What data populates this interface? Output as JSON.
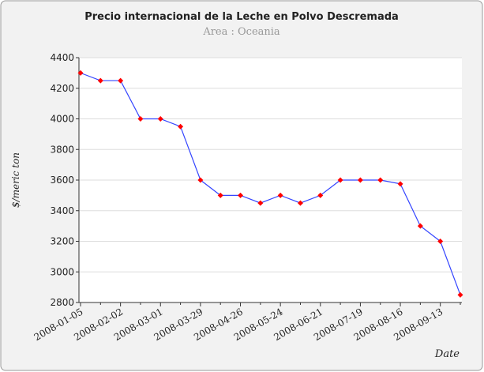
{
  "chart_data": {
    "type": "line",
    "title": "Precio internacional  de la Leche en Polvo  Descremada",
    "subtitle": "Area : Oceania",
    "y_label": "$/meric ton",
    "x_label": "Date",
    "categories": [
      "2008-01-05",
      null,
      "2008-02-02",
      null,
      "2008-03-01",
      null,
      "2008-03-29",
      null,
      "2008-04-26",
      null,
      "2008-05-24",
      null,
      "2008-06-21",
      null,
      "2008-07-19",
      null,
      "2008-08-16",
      null,
      "2008-09-13",
      null
    ],
    "series": [
      {
        "name": "Precio",
        "color": "#3344ff",
        "marker_color": "#ff0000",
        "values": [
          4300,
          4250,
          4250,
          4000,
          4000,
          3950,
          3600,
          3500,
          3500,
          3450,
          3500,
          3450,
          3500,
          3600,
          3600,
          3600,
          3575,
          3300,
          3200,
          2850
        ]
      }
    ],
    "ylim": [
      2800,
      4400
    ],
    "yticks": [
      2800,
      3000,
      3200,
      3400,
      3600,
      3800,
      4000,
      4200,
      4400
    ],
    "grid": true
  }
}
